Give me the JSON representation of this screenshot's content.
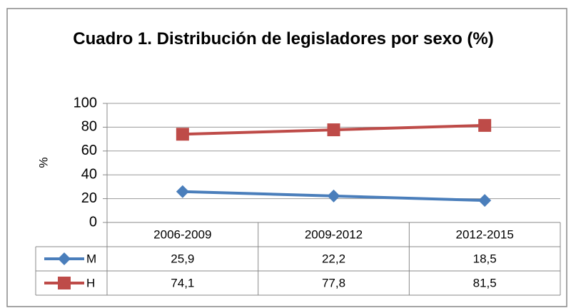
{
  "chart_data": {
    "type": "line",
    "title": "Cuadro 1. Distribución de legisladores por sexo (%)",
    "ylabel": "%",
    "categories": [
      "2006-2009",
      "2009-2012",
      "2012-2015"
    ],
    "series": [
      {
        "name": "M",
        "color": "#4a7ebb",
        "marker": "diamond",
        "values": [
          25.9,
          22.2,
          18.5
        ],
        "value_labels": [
          "25,9",
          "22,2",
          "18,5"
        ]
      },
      {
        "name": "H",
        "color": "#be4b48",
        "marker": "square",
        "values": [
          74.1,
          77.8,
          81.5
        ],
        "value_labels": [
          "74,1",
          "77,8",
          "81,5"
        ]
      }
    ],
    "ylim": [
      0,
      100
    ],
    "yticks": [
      0,
      20,
      40,
      60,
      80,
      100
    ],
    "grid": true,
    "data_table": true
  }
}
